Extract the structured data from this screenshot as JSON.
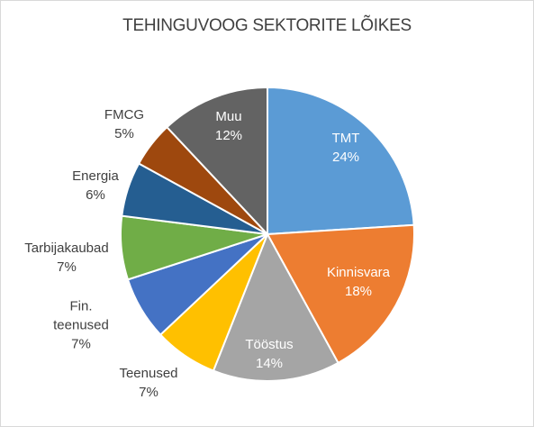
{
  "chart_data": {
    "type": "pie",
    "title": "TEHINGUVOOG SEKTORITE LÕIKES",
    "categories": [
      "TMT",
      "Kinnisvara",
      "Tööstus",
      "Teenused",
      "Fin. teenused",
      "Tarbijakaubad",
      "Energia",
      "FMCG",
      "Muu"
    ],
    "values": [
      24,
      18,
      14,
      7,
      7,
      7,
      6,
      5,
      12
    ],
    "value_labels": [
      "24%",
      "18%",
      "14%",
      "7%",
      "7%",
      "7%",
      "6%",
      "5%",
      "12%"
    ],
    "colors": [
      "#5b9bd5",
      "#ed7d31",
      "#a5a5a5",
      "#ffc000",
      "#4472c4",
      "#70ad47",
      "#255e91",
      "#9e480e",
      "#636363"
    ]
  }
}
